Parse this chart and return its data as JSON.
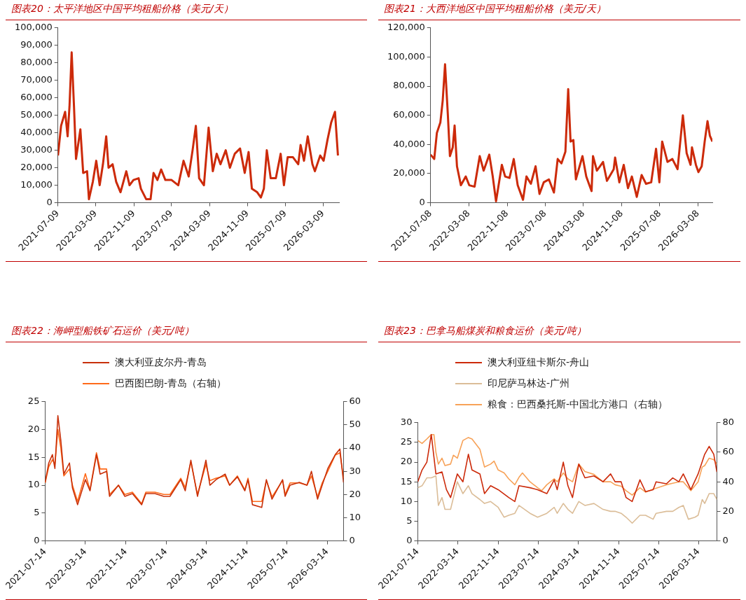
{
  "chart_data": [
    {
      "type": "line",
      "title": "图表20：太平洋地区中国平均租船价格（美元/天）",
      "color": "#cc2a0a",
      "x": [
        "2021-07-09",
        "2021-07-29",
        "2021-08-24",
        "2021-09-09",
        "2021-09-21",
        "2021-10-05",
        "2021-10-20",
        "2021-11-02",
        "2021-11-30",
        "2021-12-18",
        "2022-01-12",
        "2022-01-24",
        "2022-02-18",
        "2022-03-12",
        "2022-04-03",
        "2022-04-24",
        "2022-05-15",
        "2022-05-30",
        "2022-06-25",
        "2022-07-18",
        "2022-08-15",
        "2022-09-21",
        "2022-10-12",
        "2022-11-06",
        "2022-12-09",
        "2022-12-24",
        "2023-01-27",
        "2023-02-24",
        "2023-03-15",
        "2023-04-09",
        "2023-05-03",
        "2023-05-30",
        "2023-07-09",
        "2023-08-21",
        "2023-09-24",
        "2023-10-27",
        "2023-11-21",
        "2023-12-12",
        "2024-01-02",
        "2024-02-02",
        "2024-03-03",
        "2024-03-30",
        "2024-04-24",
        "2024-05-18",
        "2024-06-21",
        "2024-07-18",
        "2024-08-18",
        "2024-09-21",
        "2024-10-21",
        "2024-11-15",
        "2024-12-06",
        "2025-01-09",
        "2025-02-02",
        "2025-02-21",
        "2025-03-12",
        "2025-04-06",
        "2025-05-09",
        "2025-06-09",
        "2025-06-30",
        "2025-07-24",
        "2025-08-27",
        "2025-09-30",
        "2025-10-15",
        "2025-11-06",
        "2025-11-30",
        "2025-12-30",
        "2026-01-15",
        "2026-02-18",
        "2026-03-12",
        "2026-04-06",
        "2026-04-30",
        "2026-05-24",
        "2026-06-12"
      ],
      "values": [
        27000,
        44000,
        52000,
        38000,
        55000,
        86000,
        55000,
        25000,
        42000,
        17000,
        18000,
        2000,
        12000,
        24000,
        10000,
        22000,
        38000,
        20000,
        22000,
        12000,
        6000,
        18000,
        10000,
        13000,
        14000,
        8000,
        2000,
        2000,
        17000,
        13000,
        19000,
        13000,
        13000,
        10000,
        24000,
        15000,
        30000,
        44000,
        14000,
        10000,
        43000,
        18000,
        28000,
        22000,
        30000,
        20000,
        28000,
        31000,
        17000,
        29000,
        8000,
        6000,
        3000,
        8000,
        30000,
        14000,
        14000,
        28000,
        10000,
        26000,
        26000,
        22000,
        33000,
        24000,
        38000,
        22000,
        18000,
        27000,
        24000,
        36000,
        46000,
        52000,
        27000
      ],
      "xlim": [
        "2021-07-09",
        "2026-06-19"
      ],
      "xticks": [
        "2021-07-09",
        "2022-03-09",
        "2022-11-09",
        "2023-07-09",
        "2024-03-09",
        "2024-11-09",
        "2025-07-09",
        "2026-03-09"
      ],
      "ylim": [
        0,
        100000
      ],
      "yticks": [
        {
          "value": 0,
          "label": "0"
        },
        {
          "value": 10000,
          "label": "10,000"
        },
        {
          "value": 20000,
          "label": "20,000"
        },
        {
          "value": 30000,
          "label": "30,000"
        },
        {
          "value": 40000,
          "label": "40,000"
        },
        {
          "value": 50000,
          "label": "50,000"
        },
        {
          "value": 60000,
          "label": "60,000"
        },
        {
          "value": 70000,
          "label": "70,000"
        },
        {
          "value": 80000,
          "label": "80,000"
        },
        {
          "value": 90000,
          "label": "90,000"
        },
        {
          "value": 100000,
          "label": "100,000"
        }
      ],
      "grid": false,
      "legend": false
    },
    {
      "type": "line",
      "title": "图表21：大西洋地区中国平均租船价格（美元/天）",
      "color": "#cc2a0a",
      "x": [
        "2021-07-08",
        "2021-07-31",
        "2021-08-17",
        "2021-09-08",
        "2021-09-23",
        "2021-10-08",
        "2021-10-26",
        "2021-11-08",
        "2021-11-26",
        "2021-12-08",
        "2021-12-23",
        "2022-01-17",
        "2022-02-17",
        "2022-03-11",
        "2022-04-14",
        "2022-05-17",
        "2022-06-11",
        "2022-07-17",
        "2022-08-08",
        "2022-08-29",
        "2022-10-05",
        "2022-10-26",
        "2022-11-23",
        "2022-12-20",
        "2023-01-14",
        "2023-02-17",
        "2023-03-11",
        "2023-04-08",
        "2023-05-08",
        "2023-06-02",
        "2023-06-29",
        "2023-08-01",
        "2023-09-02",
        "2023-09-26",
        "2023-10-20",
        "2023-11-14",
        "2023-12-02",
        "2023-12-17",
        "2024-01-04",
        "2024-01-20",
        "2024-03-02",
        "2024-03-26",
        "2024-04-29",
        "2024-05-08",
        "2024-06-02",
        "2024-07-11",
        "2024-08-05",
        "2024-09-17",
        "2024-09-26",
        "2024-10-23",
        "2024-11-20",
        "2024-12-17",
        "2025-01-11",
        "2025-02-11",
        "2025-03-14",
        "2025-04-11",
        "2025-05-14",
        "2025-06-14",
        "2025-07-05",
        "2025-07-23",
        "2025-08-26",
        "2025-09-26",
        "2025-10-29",
        "2025-12-02",
        "2025-12-26",
        "2026-01-20",
        "2026-01-29",
        "2026-02-23",
        "2026-03-11",
        "2026-04-01",
        "2026-04-20",
        "2026-05-08",
        "2026-05-23",
        "2026-06-08"
      ],
      "values": [
        33000,
        30000,
        48000,
        55000,
        70000,
        95000,
        60000,
        32000,
        38000,
        53000,
        25000,
        12000,
        18000,
        12000,
        11000,
        32000,
        22000,
        33000,
        18000,
        1000,
        26000,
        18000,
        17000,
        30000,
        12000,
        2000,
        18000,
        13000,
        25000,
        6000,
        14000,
        16000,
        7000,
        30000,
        27000,
        35000,
        78000,
        42000,
        43000,
        16000,
        32000,
        18000,
        8000,
        32000,
        22000,
        28000,
        15000,
        23000,
        31000,
        14000,
        26000,
        10000,
        18000,
        4000,
        19000,
        13000,
        14000,
        37000,
        14000,
        42000,
        28000,
        30000,
        23000,
        60000,
        34000,
        26000,
        38000,
        26000,
        21000,
        25000,
        42000,
        56000,
        46000,
        42000
      ],
      "xlim": [
        "2021-07-08",
        "2026-06-08"
      ],
      "xticks": [
        "2021-07-08",
        "2022-03-08",
        "2022-11-08",
        "2023-07-08",
        "2024-03-08",
        "2024-11-08",
        "2025-07-08",
        "2026-03-08"
      ],
      "ylim": [
        0,
        120000
      ],
      "yticks": [
        {
          "value": 0,
          "label": "0"
        },
        {
          "value": 20000,
          "label": "20,000"
        },
        {
          "value": 40000,
          "label": "40,000"
        },
        {
          "value": 60000,
          "label": "60,000"
        },
        {
          "value": 80000,
          "label": "80,000"
        },
        {
          "value": 100000,
          "label": "100,000"
        },
        {
          "value": 120000,
          "label": "120,000"
        }
      ],
      "grid": false,
      "legend": false
    },
    {
      "type": "line",
      "title": "图表22：海岬型船铁矿石运价（美元/吨）",
      "x": [
        "2021-07-14",
        "2021-08-05",
        "2021-08-27",
        "2021-09-11",
        "2021-09-29",
        "2021-10-17",
        "2021-11-04",
        "2021-12-08",
        "2021-12-26",
        "2022-01-26",
        "2022-03-14",
        "2022-04-11",
        "2022-05-20",
        "2022-06-11",
        "2022-07-20",
        "2022-08-07",
        "2022-09-30",
        "2022-11-07",
        "2022-12-23",
        "2023-02-17",
        "2023-03-14",
        "2023-05-08",
        "2023-07-01",
        "2023-08-07",
        "2023-10-11",
        "2023-11-07",
        "2023-12-11",
        "2024-01-20",
        "2024-03-11",
        "2024-04-04",
        "2024-05-11",
        "2024-07-05",
        "2024-08-01",
        "2024-09-17",
        "2024-11-01",
        "2024-11-20",
        "2024-12-17",
        "2025-02-11",
        "2025-03-11",
        "2025-04-14",
        "2025-06-17",
        "2025-07-02",
        "2025-08-01",
        "2025-09-26",
        "2025-11-11",
        "2025-12-08",
        "2026-01-14",
        "2026-02-11",
        "2026-03-17",
        "2026-05-01",
        "2026-05-29",
        "2026-06-20"
      ],
      "series": [
        {
          "name": "澳大利亚皮尔丹-青岛",
          "color": "#c8300a",
          "values": [
            10.5,
            14,
            15.5,
            13,
            22.5,
            18,
            12,
            14,
            9.5,
            6.5,
            11,
            9,
            15.5,
            12,
            12.5,
            8,
            10,
            8,
            8.5,
            6.5,
            8.5,
            8.5,
            8,
            8,
            11,
            9,
            14.5,
            8,
            14.5,
            10,
            11,
            12,
            10,
            11.5,
            9,
            11,
            6.5,
            6,
            11,
            7.5,
            11,
            8,
            10,
            10.5,
            10,
            12.5,
            7.5,
            10,
            13,
            15.5,
            16.5,
            10.5
          ]
        },
        {
          "name": "巴西图巴朗-青岛（右轴）",
          "color": "#ff6a1a",
          "axis": "y2",
          "values": [
            25,
            32,
            35,
            33,
            48,
            40,
            28,
            31,
            24,
            17,
            29,
            22,
            38,
            31,
            31,
            20,
            24,
            20,
            21,
            16,
            21,
            21,
            20,
            20,
            27,
            23,
            34,
            20,
            33,
            26,
            27,
            28,
            24,
            28,
            22,
            27,
            17,
            17,
            26,
            19,
            26,
            20,
            25,
            25,
            24,
            28,
            19,
            25,
            30,
            37,
            38,
            27
          ]
        }
      ],
      "xlim": [
        "2021-07-14",
        "2026-06-20"
      ],
      "xticks": [
        "2021-07-14",
        "2022-03-14",
        "2022-11-14",
        "2023-07-14",
        "2024-03-14",
        "2024-11-14",
        "2025-07-14",
        "2026-03-14"
      ],
      "ylim": [
        0,
        25
      ],
      "yticks": [
        0,
        5,
        10,
        15,
        20,
        25
      ],
      "y2lim": [
        0,
        60
      ],
      "y2ticks": [
        0,
        10,
        20,
        30,
        40,
        50,
        60
      ],
      "grid": false,
      "legend": "top"
    },
    {
      "type": "line",
      "title": "图表23：巴拿马船煤炭和粮食运价（美元/吨）",
      "series": [
        {
          "name": "澳大利亚纽卡斯尔-舟山",
          "color": "#cc2a0a",
          "x": [
            "2021-07-14",
            "2021-08-09",
            "2021-09-07",
            "2021-10-04",
            "2021-11-01",
            "2021-12-08",
            "2022-01-04",
            "2022-01-29",
            "2022-03-11",
            "2022-04-14",
            "2022-05-17",
            "2022-06-08",
            "2022-07-26",
            "2022-08-23",
            "2022-09-29",
            "2022-11-14",
            "2023-01-17",
            "2023-02-23",
            "2023-03-20",
            "2023-05-26",
            "2023-07-11",
            "2023-09-05",
            "2023-10-20",
            "2023-11-07",
            "2023-12-14",
            "2024-01-11",
            "2024-02-08",
            "2024-03-17",
            "2024-04-23",
            "2024-06-17",
            "2024-08-11",
            "2024-09-26",
            "2024-10-23",
            "2024-11-29",
            "2024-12-29",
            "2025-02-04",
            "2025-03-23",
            "2025-04-26",
            "2025-06-11",
            "2025-06-29",
            "2025-08-31",
            "2025-10-08",
            "2025-11-14",
            "2025-12-11",
            "2026-01-26",
            "2026-03-11",
            "2026-04-20",
            "2026-05-17",
            "2026-06-14",
            "2026-07-03"
          ],
          "values": [
            15,
            18,
            20,
            27,
            17,
            17.5,
            13,
            11,
            17,
            15,
            22,
            18,
            17,
            12,
            14,
            13,
            11,
            10,
            14,
            13.5,
            13,
            12,
            15.5,
            13,
            20,
            14,
            11,
            19.5,
            16,
            16.5,
            15,
            17,
            15,
            15,
            11,
            10,
            15.5,
            12.5,
            13,
            15,
            14.5,
            16,
            15,
            17,
            13,
            17,
            22,
            24,
            22,
            17.5
          ]
        },
        {
          "name": "印尼萨马林达-广州",
          "color": "#dbbd98",
          "x": [
            "2021-07-14",
            "2021-08-09",
            "2021-09-07",
            "2021-10-04",
            "2021-11-01",
            "2021-11-16",
            "2021-12-08",
            "2021-12-26",
            "2022-01-29",
            "2022-03-11",
            "2022-04-14",
            "2022-05-17",
            "2022-06-08",
            "2022-07-26",
            "2022-08-23",
            "2022-09-29",
            "2022-11-14",
            "2022-12-20",
            "2023-01-17",
            "2023-02-23",
            "2023-03-20",
            "2023-05-26",
            "2023-07-11",
            "2023-09-05",
            "2023-10-20",
            "2023-11-07",
            "2023-12-14",
            "2024-01-11",
            "2024-02-08",
            "2024-03-17",
            "2024-04-23",
            "2024-06-17",
            "2024-08-11",
            "2024-09-26",
            "2024-10-23",
            "2024-11-29",
            "2024-12-29",
            "2025-02-04",
            "2025-03-23",
            "2025-04-26",
            "2025-06-11",
            "2025-06-29",
            "2025-08-31",
            "2025-10-08",
            "2025-11-14",
            "2025-12-11",
            "2026-01-11",
            "2026-02-20",
            "2026-03-11",
            "2026-04-05",
            "2026-04-20",
            "2026-05-17",
            "2026-06-14",
            "2026-07-03"
          ],
          "values": [
            13.5,
            14,
            16,
            16,
            16.5,
            9,
            11,
            8,
            8,
            15,
            12,
            14,
            12,
            10.5,
            9.5,
            10,
            8.5,
            6,
            6.5,
            7,
            9,
            7,
            6,
            7,
            8.5,
            7,
            9.5,
            8,
            7,
            10,
            9,
            9.5,
            8,
            7.5,
            7.5,
            7,
            6,
            4.5,
            6.5,
            6.5,
            5.5,
            7,
            7.5,
            7.5,
            8.5,
            9,
            5.5,
            6,
            6.5,
            10.5,
            9.5,
            12,
            12,
            10.5
          ]
        },
        {
          "name": "粮食：巴西桑托斯-中国北方港口（右轴）",
          "color": "#f7a258",
          "axis": "y2",
          "x": [
            "2021-07-14",
            "2021-08-09",
            "2021-09-07",
            "2021-10-04",
            "2021-10-20",
            "2021-11-01",
            "2021-11-16",
            "2021-12-08",
            "2021-12-26",
            "2022-01-29",
            "2022-02-15",
            "2022-03-11",
            "2022-04-14",
            "2022-05-17",
            "2022-06-08",
            "2022-07-26",
            "2022-08-23",
            "2022-09-29",
            "2022-10-20",
            "2022-11-14",
            "2022-12-20",
            "2023-01-17",
            "2023-02-23",
            "2023-03-20",
            "2023-04-10",
            "2023-05-26",
            "2023-07-11",
            "2023-08-05",
            "2023-09-05",
            "2023-10-20",
            "2023-11-07",
            "2023-12-14",
            "2024-01-11",
            "2024-02-08",
            "2024-03-17",
            "2024-04-23",
            "2024-06-17",
            "2024-08-11",
            "2024-09-26",
            "2024-10-23",
            "2024-11-29",
            "2024-12-29",
            "2025-02-04",
            "2025-03-23",
            "2025-04-26",
            "2025-06-11",
            "2025-08-31",
            "2025-10-08",
            "2025-11-14",
            "2025-12-11",
            "2026-01-26",
            "2026-03-11",
            "2026-04-05",
            "2026-04-20",
            "2026-05-17",
            "2026-06-14",
            "2026-07-03"
          ],
          "values": [
            68,
            66,
            69,
            72,
            72,
            60,
            52,
            56,
            51,
            52,
            58,
            56,
            68,
            70,
            69,
            62,
            50,
            52,
            54,
            48,
            46,
            42,
            38,
            43,
            46,
            40,
            36,
            34,
            38,
            42,
            40,
            46,
            42,
            40,
            52,
            47,
            45,
            40,
            40,
            38,
            37,
            34,
            31,
            36,
            33,
            35,
            38,
            39,
            40,
            40,
            34,
            40,
            50,
            51,
            56,
            55,
            52
          ]
        }
      ],
      "xlim": [
        "2021-07-14",
        "2026-07-03"
      ],
      "xticks": [
        "2021-07-14",
        "2022-03-14",
        "2022-11-14",
        "2023-07-14",
        "2024-03-14",
        "2024-11-14",
        "2025-07-14",
        "2026-03-14"
      ],
      "ylim": [
        0,
        30
      ],
      "yticks": [
        0,
        5,
        10,
        15,
        20,
        25,
        30
      ],
      "y2lim": [
        0,
        80
      ],
      "y2ticks": [
        0,
        20,
        40,
        60,
        80
      ],
      "grid": false,
      "legend": "top"
    }
  ]
}
